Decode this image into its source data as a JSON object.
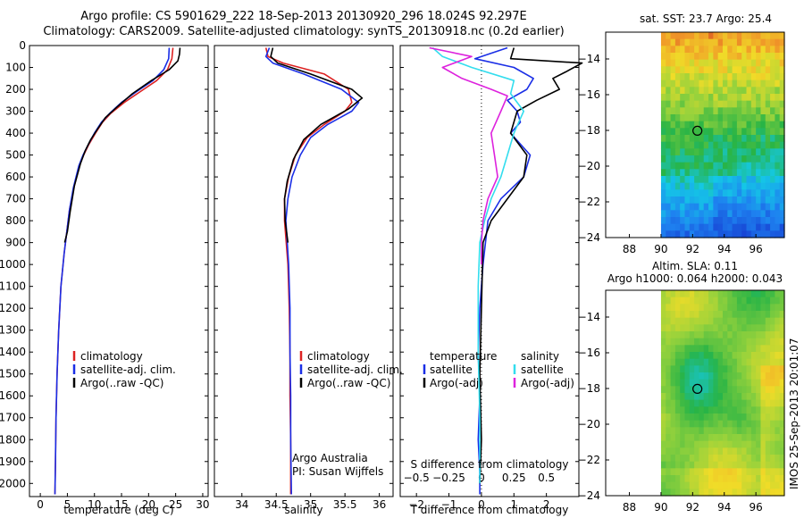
{
  "titles": {
    "line1": "Argo profile: CS 5901629_222 18-Sep-2013 20130920_296 18.024S 92.297E",
    "line2": "Climatology: CARS2009. Satellite-adjusted climatology: synTS_20130918.nc (0.2d earlier)"
  },
  "colors": {
    "climatology": "#dd2222",
    "satellite": "#1a2ee6",
    "argo": "#000000",
    "salinity_satellite": "#33ddee",
    "salinity_argo": "#dd22dd"
  },
  "chart_data": [
    {
      "type": "line",
      "id": "temperature",
      "xlabel": "temperature (deg C)",
      "xlim": [
        -2,
        31
      ],
      "ylim": [
        2060,
        0
      ],
      "xticks": [
        0,
        5,
        10,
        15,
        20,
        25,
        30
      ],
      "yticks": [
        0,
        100,
        200,
        300,
        400,
        500,
        600,
        700,
        800,
        900,
        1000,
        1100,
        1200,
        1300,
        1400,
        1500,
        1600,
        1700,
        1800,
        1900,
        2000
      ],
      "legend": [
        "climatology",
        "satellite-adj. clim.",
        "Argo(..raw -QC)"
      ],
      "series": [
        {
          "name": "climatology",
          "color": "#dd2222",
          "x": [
            24.5,
            24.3,
            23.5,
            21.5,
            18.5,
            15.5,
            13,
            11.5,
            10.2,
            9,
            8,
            7.2,
            6.2,
            5.4,
            4.9,
            4.4,
            3.8,
            3.4,
            3.1,
            2.9,
            2.8,
            2.7
          ],
          "y": [
            10,
            60,
            110,
            160,
            210,
            260,
            310,
            350,
            400,
            450,
            500,
            550,
            650,
            750,
            850,
            950,
            1100,
            1300,
            1500,
            1700,
            1900,
            2050
          ]
        },
        {
          "name": "satellite-adj. clim.",
          "color": "#1a2ee6",
          "x": [
            23.8,
            23.7,
            22.8,
            20.8,
            17.8,
            15,
            12.8,
            11.3,
            10,
            8.9,
            7.9,
            7.1,
            6.1,
            5.4,
            4.9,
            4.4,
            3.8,
            3.4,
            3.1,
            2.9,
            2.8,
            2.7
          ],
          "y": [
            10,
            60,
            110,
            160,
            210,
            260,
            310,
            350,
            400,
            450,
            500,
            550,
            650,
            750,
            850,
            950,
            1100,
            1300,
            1500,
            1700,
            1900,
            2050
          ]
        },
        {
          "name": "Argo(..raw -QC)",
          "color": "#000000",
          "x": [
            25.8,
            25.7,
            25.4,
            23.8,
            20.5,
            17,
            14.2,
            12,
            10.6,
            9.3,
            8.3,
            7.4,
            6.3,
            5.5,
            5,
            4.5
          ],
          "y": [
            10,
            40,
            70,
            110,
            160,
            220,
            280,
            330,
            380,
            430,
            480,
            540,
            640,
            760,
            850,
            900
          ]
        }
      ]
    },
    {
      "type": "line",
      "id": "salinity",
      "xlabel": "salinity",
      "xlim": [
        33.6,
        36.2
      ],
      "ylim": [
        2060,
        0
      ],
      "xticks": [
        34,
        34.5,
        35,
        35.5,
        36
      ],
      "yticks": [
        0,
        100,
        200,
        300,
        400,
        500,
        600,
        700,
        800,
        900,
        1000,
        1100,
        1200,
        1300,
        1400,
        1500,
        1600,
        1700,
        1800,
        1900,
        2000
      ],
      "legend": [
        "climatology",
        "satellite-adj. clim.",
        "Argo(..raw -QC)"
      ],
      "annotations": [
        "Argo Australia",
        "PI: Susan Wijffels"
      ],
      "series": [
        {
          "name": "climatology",
          "color": "#dd2222",
          "x": [
            34.35,
            34.38,
            34.6,
            35.2,
            35.55,
            35.6,
            35.5,
            35.2,
            34.95,
            34.78,
            34.68,
            34.62,
            34.62,
            34.67,
            34.69,
            34.7,
            34.7,
            34.71,
            34.71
          ],
          "y": [
            10,
            50,
            80,
            130,
            200,
            260,
            300,
            360,
            420,
            500,
            600,
            700,
            800,
            1000,
            1200,
            1400,
            1600,
            1800,
            2050
          ]
        },
        {
          "name": "satellite-adj. clim.",
          "color": "#1a2ee6",
          "x": [
            34.4,
            34.35,
            34.45,
            34.9,
            35.45,
            35.7,
            35.6,
            35.25,
            35,
            34.85,
            34.73,
            34.67,
            34.64,
            34.68,
            34.7,
            34.7,
            34.71,
            34.71,
            34.72
          ],
          "y": [
            10,
            50,
            80,
            130,
            200,
            260,
            300,
            360,
            420,
            500,
            600,
            700,
            800,
            1000,
            1200,
            1400,
            1600,
            1800,
            2050
          ]
        },
        {
          "name": "Argo(..raw -QC)",
          "color": "#000000",
          "x": [
            34.45,
            34.42,
            34.52,
            35.0,
            35.6,
            35.75,
            35.55,
            35.15,
            34.9,
            34.75,
            34.66,
            34.62,
            34.63,
            34.67
          ],
          "y": [
            10,
            50,
            80,
            130,
            200,
            240,
            290,
            360,
            430,
            520,
            620,
            700,
            800,
            900
          ]
        }
      ]
    },
    {
      "type": "line",
      "id": "differences",
      "xlabel": "T difference from climatology",
      "xlabel_top": "S difference from climatology",
      "xlim": [
        -2.5,
        3
      ],
      "ylim": [
        2060,
        0
      ],
      "xticks": [
        -2,
        -1,
        0,
        1,
        2
      ],
      "xticks_top": [
        -0.5,
        -0.25,
        0,
        0.25,
        0.5
      ],
      "yticks": [
        0,
        100,
        200,
        300,
        400,
        500,
        600,
        700,
        800,
        900,
        1000,
        1100,
        1200,
        1300,
        1400,
        1500,
        1600,
        1700,
        1800,
        1900,
        2000
      ],
      "legend_titles": [
        "temperature",
        "salinity"
      ],
      "legend": [
        "satellite",
        "Argo(-adj)",
        "satellite",
        "Argo(-adj)"
      ],
      "series": [
        {
          "name": "satellite",
          "color": "#1a2ee6",
          "x": [
            0.8,
            -0.2,
            1.0,
            1.6,
            1.4,
            0.8,
            1.1,
            1.2,
            0.9,
            1.5,
            1.3,
            0.6,
            0.2,
            0.05,
            -0.05,
            -0.1,
            -0.05,
            -0.1,
            -0.05,
            -0.05
          ],
          "y": [
            10,
            60,
            100,
            150,
            200,
            250,
            300,
            350,
            400,
            500,
            600,
            700,
            800,
            1000,
            1200,
            1400,
            1600,
            1800,
            1950,
            2050
          ]
        },
        {
          "name": "Argo(-adj)",
          "color": "#000000",
          "x": [
            1.0,
            0.9,
            3.1,
            2.6,
            2.2,
            2.4,
            1.7,
            1.1,
            0.9,
            1.4,
            1.3,
            0.8,
            0.3,
            0.05,
            0,
            -0.05,
            0,
            -0.05
          ],
          "y": [
            10,
            60,
            80,
            120,
            150,
            200,
            250,
            300,
            400,
            500,
            600,
            700,
            800,
            900,
            1200,
            1500,
            1800,
            2000
          ]
        },
        {
          "name": "salinity satellite",
          "color": "#33ddee",
          "x": [
            -1.5,
            -1.2,
            -0.3,
            1.0,
            0.9,
            1.3,
            1.0,
            0.8,
            0.6,
            0.3,
            0.1,
            -0.05,
            -0.1,
            -0.1,
            -0.05,
            -0.05
          ],
          "y": [
            10,
            50,
            100,
            160,
            220,
            300,
            400,
            500,
            600,
            700,
            800,
            900,
            1100,
            1400,
            1700,
            2000
          ]
        },
        {
          "name": "salinity Argo(-adj)",
          "color": "#dd22dd",
          "x": [
            -1.6,
            -0.3,
            -1.2,
            -0.6,
            0.3,
            0.8,
            0.6,
            0.3,
            0.4,
            0.5,
            0.2,
            0.05,
            0,
            0
          ],
          "y": [
            10,
            50,
            100,
            150,
            200,
            230,
            300,
            400,
            500,
            600,
            700,
            800,
            900,
            1000
          ]
        }
      ]
    },
    {
      "type": "heatmap",
      "id": "sst-map",
      "title": "sat. SST: 23.7  Argo: 25.4",
      "xlim": [
        86.5,
        97.8
      ],
      "ylim": [
        -24,
        -12.5
      ],
      "xticks": [
        88,
        90,
        92,
        94,
        96
      ],
      "yticks": [
        -14,
        -16,
        -18,
        -20,
        -22,
        -24
      ],
      "marker": {
        "lon": 92.3,
        "lat": -18.02
      }
    },
    {
      "type": "heatmap",
      "id": "sla-map",
      "title": "Altim. SLA: 0.11",
      "subtitle": "Argo h1000: 0.064 h2000: 0.043",
      "xlim": [
        86.5,
        97.8
      ],
      "ylim": [
        -24,
        -12.5
      ],
      "xticks": [
        88,
        90,
        92,
        94,
        96
      ],
      "yticks": [
        -14,
        -16,
        -18,
        -20,
        -22,
        -24
      ],
      "marker": {
        "lon": 92.3,
        "lat": -18.02
      }
    }
  ],
  "side_stamp": "IMOS 25-Sep-2013 20:01:07"
}
